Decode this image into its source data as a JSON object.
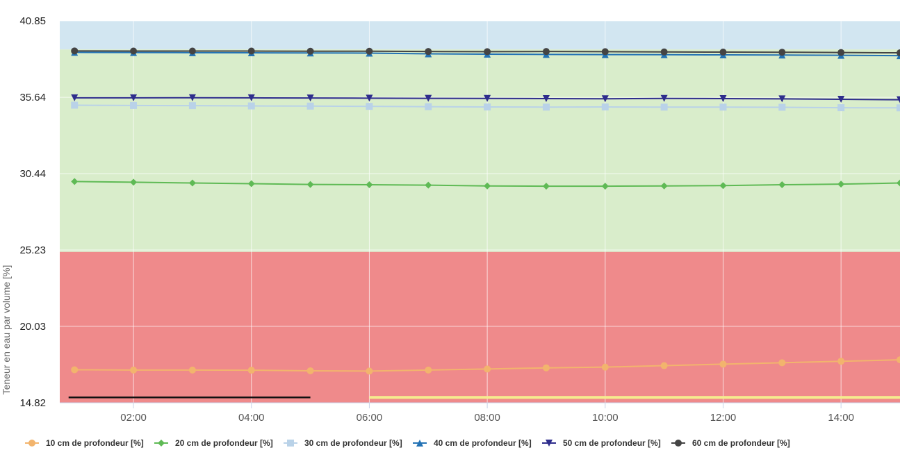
{
  "chart_data": {
    "type": "line",
    "ylabel": "Teneur en eau par volume [%]",
    "xlabel": "",
    "ylim": [
      14.82,
      40.85
    ],
    "xlim": [
      0.75,
      15.0
    ],
    "y_ticks": [
      "40.85",
      "35.64",
      "30.44",
      "25.23",
      "20.03",
      "14.82"
    ],
    "x_ticks": [
      {
        "value": 2,
        "label": "02:00"
      },
      {
        "value": 4,
        "label": "04:00"
      },
      {
        "value": 6,
        "label": "06:00"
      },
      {
        "value": 8,
        "label": "08:00"
      },
      {
        "value": 10,
        "label": "10:00"
      },
      {
        "value": 12,
        "label": "12:00"
      },
      {
        "value": 14,
        "label": "14:00"
      }
    ],
    "grid": true,
    "legend_position": "bottom",
    "bands": [
      {
        "from": 38.9,
        "to": 40.85,
        "color": "#d2e6f1"
      },
      {
        "from": 25.1,
        "to": 38.9,
        "color": "#d9edcb"
      },
      {
        "from": 14.82,
        "to": 25.1,
        "color": "#ef8a8b"
      }
    ],
    "threshold_lines": [
      {
        "from_x": 0.9,
        "to_x": 5.0,
        "y": 15.0,
        "color": "#111111"
      },
      {
        "from_x": 6.0,
        "to_x": 15.0,
        "y": 15.0,
        "color": "#f5ec8e"
      }
    ],
    "x": [
      1,
      2,
      3,
      4,
      5,
      6,
      7,
      8,
      9,
      10,
      11,
      12,
      13,
      14,
      15
    ],
    "series": [
      {
        "name": "10 cm de profondeur [%]",
        "color": "#f2b46d",
        "marker": "circle",
        "values": [
          17.07,
          17.05,
          17.05,
          17.04,
          17.0,
          16.98,
          17.05,
          17.12,
          17.2,
          17.25,
          17.35,
          17.45,
          17.55,
          17.65,
          17.75
        ]
      },
      {
        "name": "20 cm de profondeur [%]",
        "color": "#5fba55",
        "marker": "diamond",
        "values": [
          29.9,
          29.85,
          29.8,
          29.75,
          29.7,
          29.68,
          29.65,
          29.6,
          29.58,
          29.58,
          29.6,
          29.62,
          29.68,
          29.72,
          29.8
        ]
      },
      {
        "name": "30 cm de profondeur [%]",
        "color": "#b9d2e8",
        "marker": "square",
        "values": [
          35.1,
          35.08,
          35.07,
          35.05,
          35.04,
          35.02,
          35.0,
          34.98,
          34.97,
          34.98,
          34.97,
          34.97,
          34.96,
          34.93,
          34.92
        ]
      },
      {
        "name": "40 cm de profondeur [%]",
        "color": "#2473b5",
        "marker": "triangle",
        "values": [
          38.7,
          38.69,
          38.68,
          38.67,
          38.66,
          38.65,
          38.6,
          38.58,
          38.56,
          38.55,
          38.54,
          38.53,
          38.52,
          38.5,
          38.48
        ]
      },
      {
        "name": "50 cm de profondeur [%]",
        "color": "#2e2d8c",
        "marker": "triangle-down",
        "values": [
          35.6,
          35.6,
          35.61,
          35.6,
          35.59,
          35.58,
          35.57,
          35.56,
          35.55,
          35.54,
          35.56,
          35.55,
          35.53,
          35.5,
          35.47
        ]
      },
      {
        "name": "60 cm de profondeur [%]",
        "color": "#444444",
        "marker": "circle",
        "values": [
          38.8,
          38.79,
          38.79,
          38.79,
          38.78,
          38.78,
          38.76,
          38.75,
          38.76,
          38.75,
          38.73,
          38.72,
          38.71,
          38.69,
          38.67
        ]
      }
    ]
  }
}
